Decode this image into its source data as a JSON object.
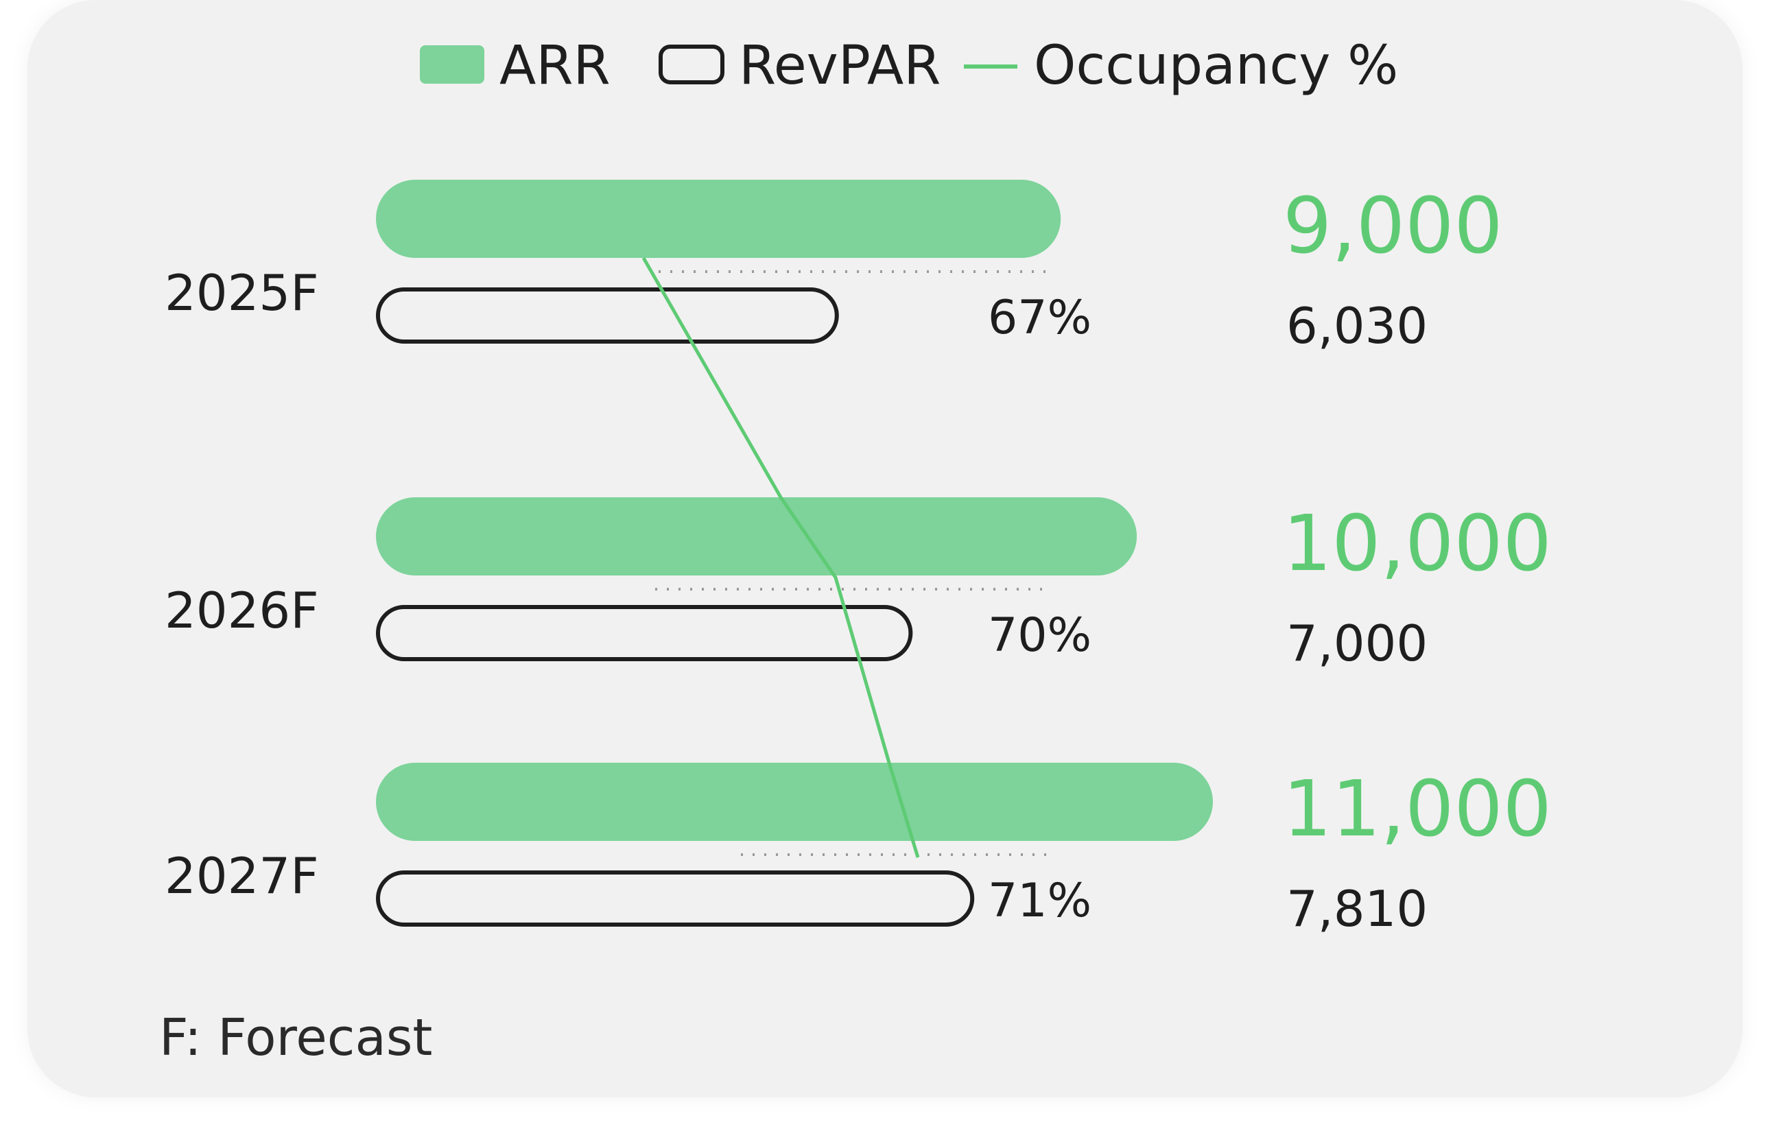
{
  "chart_data": {
    "type": "bar",
    "orientation": "horizontal",
    "categories": [
      "2025F",
      "2026F",
      "2027F"
    ],
    "series": [
      {
        "name": "ARR",
        "values": [
          9000,
          10000,
          11000
        ],
        "style": "filled",
        "color": "#7dd39a"
      },
      {
        "name": "RevPAR",
        "values": [
          6030,
          7000,
          7810
        ],
        "style": "outline",
        "color": "#1e1e1e"
      },
      {
        "name": "Occupancy %",
        "values": [
          67,
          70,
          71
        ],
        "style": "line",
        "color": "#5ecb74"
      }
    ],
    "value_labels": {
      "ARR": [
        "9,000",
        "10,000",
        "11,000"
      ],
      "RevPAR": [
        "6,030",
        "7,000",
        "7,810"
      ],
      "Occupancy %": [
        "67%",
        "70%",
        "71%"
      ]
    },
    "legend": {
      "position": "top-center",
      "items": [
        "ARR",
        "RevPAR",
        "Occupancy %"
      ]
    },
    "footnote": "F: Forecast",
    "xlim": [
      0,
      11000
    ],
    "grid": false,
    "colors": {
      "arr_fill": "#7dd39a",
      "arr_label": "#5ecb74",
      "line": "#5ecb74",
      "outline": "#1e1e1e",
      "card_background": "#f1f1f1"
    }
  }
}
